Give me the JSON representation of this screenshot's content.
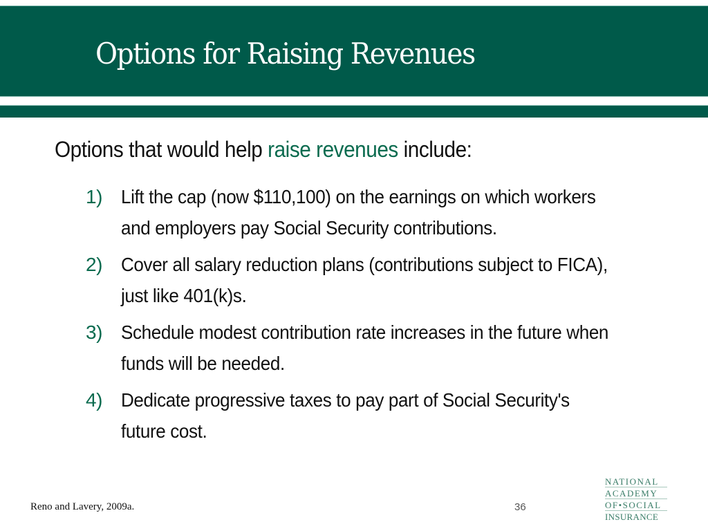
{
  "slide": {
    "title": "Options for Raising Revenues",
    "intro": {
      "before": "Options that would help ",
      "highlight": "raise revenues",
      "after": " include:"
    },
    "items": [
      {
        "number": "1)",
        "text": "Lift the cap (now $110,100) on the earnings on which workers and employers pay Social Security contributions."
      },
      {
        "number": "2)",
        "text": "Cover all salary reduction plans (contributions subject to FICA), just like 401(k)s."
      },
      {
        "number": "3)",
        "text": "Schedule modest contribution rate increases in the future when funds will be needed."
      },
      {
        "number": "4)",
        "text": "Dedicate progressive taxes to pay part of Social Security's future cost."
      }
    ],
    "footer": {
      "citation": "Reno and Lavery, 2009a.",
      "page_number": "36"
    },
    "logo": {
      "lines": [
        "NATIONAL",
        "ACADEMY",
        "OF•SOCIAL",
        "INSURANCE"
      ]
    },
    "colors": {
      "band": "#005a4a",
      "accent": "#0b6b4f",
      "logo": "#3a7d68"
    }
  }
}
